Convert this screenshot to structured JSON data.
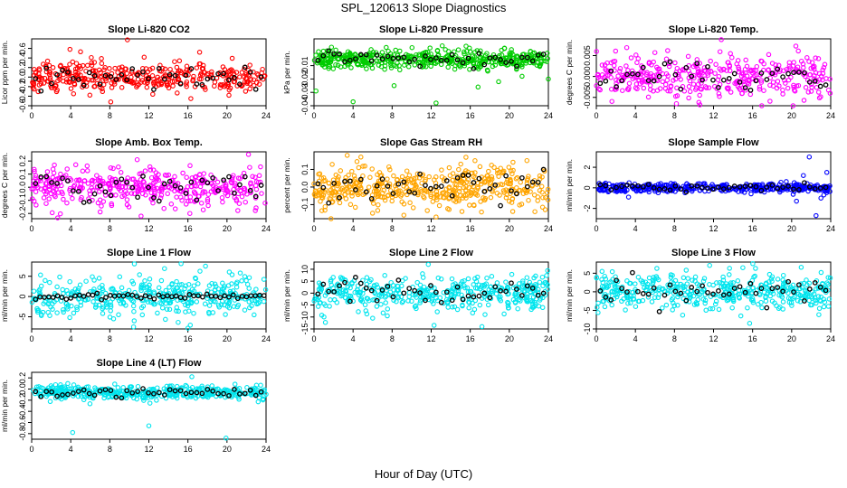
{
  "figure": {
    "title": "SPL_120613  Slope Diagnostics",
    "xlabel": "Hour of Day (UTC)"
  },
  "style": {
    "highlight_color": "#000000"
  },
  "chart_data": [
    {
      "type": "scatter",
      "title": "Slope Li-820 CO2",
      "ylabel": "Licor ppm per min.",
      "color": "#ff0000",
      "xlim": [
        0,
        24
      ],
      "ylim": [
        -0.6,
        0.8
      ],
      "xticks": [
        0,
        4,
        8,
        12,
        16,
        20,
        24
      ],
      "yticks": [
        -0.6,
        -0.4,
        -0.2,
        0.0,
        0.2,
        0.4,
        0.6
      ],
      "ytick_labels": [
        "-0.6",
        "-0.4",
        "-0.2",
        "0.0",
        "0.2",
        "0.4",
        "0.6"
      ],
      "center": 0.0,
      "spread": 0.16,
      "n": 380,
      "outliers": [
        [
          9.8,
          0.78
        ],
        [
          17.2,
          0.52
        ],
        [
          8.1,
          -0.52
        ],
        [
          16.3,
          -0.45
        ],
        [
          12.4,
          -0.36
        ]
      ]
    },
    {
      "type": "scatter",
      "title": "Slope Li-820 Pressure",
      "ylabel": "kPa per min.",
      "color": "#00cc00",
      "xlim": [
        0,
        24
      ],
      "ylim": [
        -0.04,
        0.01
      ],
      "xticks": [
        0,
        4,
        8,
        12,
        16,
        20,
        24
      ],
      "yticks": [
        -0.04,
        -0.03,
        -0.02,
        -0.01
      ],
      "ytick_labels": [
        "-0.04",
        "-0.03",
        "-0.02",
        "-0.01"
      ],
      "center": -0.005,
      "spread": 0.0035,
      "n": 460,
      "outliers": [
        [
          0.2,
          -0.029
        ],
        [
          4.0,
          -0.037
        ],
        [
          8.2,
          -0.025
        ],
        [
          12.5,
          -0.038
        ],
        [
          16.8,
          -0.026
        ],
        [
          18.9,
          -0.022
        ],
        [
          21.3,
          -0.018
        ],
        [
          24.0,
          -0.02
        ]
      ]
    },
    {
      "type": "scatter",
      "title": "Slope Li-820 Temp.",
      "ylabel": "degrees C per min.",
      "color": "#ff00ff",
      "xlim": [
        0,
        24
      ],
      "ylim": [
        -0.007,
        0.009
      ],
      "xticks": [
        0,
        4,
        8,
        12,
        16,
        20,
        24
      ],
      "yticks": [
        -0.005,
        0.0,
        0.005
      ],
      "ytick_labels": [
        "-0.005",
        "0.000",
        "0.005"
      ],
      "center": 0.0,
      "spread": 0.0024,
      "n": 380,
      "outliers": [
        [
          12.8,
          0.0088
        ],
        [
          8.2,
          -0.0065
        ],
        [
          10.5,
          -0.0062
        ],
        [
          7.3,
          0.0062
        ]
      ]
    },
    {
      "type": "scatter",
      "title": "Slope Amb. Box Temp.",
      "ylabel": "degrees C per min.",
      "color": "#ff00ff",
      "xlim": [
        0,
        24
      ],
      "ylim": [
        -0.24,
        0.27
      ],
      "xticks": [
        0,
        4,
        8,
        12,
        16,
        20,
        24
      ],
      "yticks": [
        -0.2,
        -0.1,
        0.0,
        0.1,
        0.2
      ],
      "ytick_labels": [
        "-0.2",
        "-0.1",
        "0.0",
        "0.1",
        "0.2"
      ],
      "center": 0.0,
      "spread": 0.075,
      "n": 400,
      "outliers": [
        [
          22.2,
          0.25
        ],
        [
          10.8,
          0.21
        ],
        [
          11.2,
          -0.22
        ],
        [
          16.2,
          -0.2
        ]
      ]
    },
    {
      "type": "scatter",
      "title": "Slope Gas Stream RH",
      "ylabel": "percent per min.",
      "color": "#ffa500",
      "xlim": [
        0,
        24
      ],
      "ylim": [
        -0.18,
        0.2
      ],
      "xticks": [
        0,
        4,
        8,
        12,
        16,
        20,
        24
      ],
      "yticks": [
        -0.1,
        0.0,
        0.1
      ],
      "ytick_labels": [
        "-0.1",
        "0.0",
        "0.1"
      ],
      "center": 0.0,
      "spread": 0.06,
      "n": 460,
      "outliers": [
        [
          3.4,
          0.18
        ],
        [
          4.8,
          0.17
        ],
        [
          12.5,
          -0.17
        ],
        [
          21.8,
          0.15
        ],
        [
          9.2,
          -0.16
        ]
      ]
    },
    {
      "type": "scatter",
      "title": "Slope Sample Flow",
      "ylabel": "ml/min per min.",
      "color": "#0000ff",
      "xlim": [
        0,
        24
      ],
      "ylim": [
        -3.0,
        3.5
      ],
      "xticks": [
        0,
        4,
        8,
        12,
        16,
        20,
        24
      ],
      "yticks": [
        -2,
        0,
        2
      ],
      "ytick_labels": [
        "-2",
        "0",
        "2"
      ],
      "center": 0.0,
      "spread": 0.22,
      "n": 380,
      "outliers": [
        [
          21.8,
          3.0
        ],
        [
          22.5,
          -2.7
        ],
        [
          23.6,
          1.5
        ],
        [
          21.2,
          1.2
        ],
        [
          20.5,
          -1.3
        ],
        [
          23.0,
          -1.0
        ],
        [
          3.3,
          -0.9
        ]
      ]
    },
    {
      "type": "scatter",
      "title": "Slope Line 1 Flow",
      "ylabel": "ml/min per min.",
      "color": "#00e5ee",
      "xlim": [
        0,
        24
      ],
      "ylim": [
        -8.0,
        8.5
      ],
      "xticks": [
        0,
        4,
        8,
        12,
        16,
        20,
        24
      ],
      "yticks": [
        -5,
        0,
        5
      ],
      "ytick_labels": [
        "-5",
        "0",
        "5"
      ],
      "center": 0.0,
      "spread": 2.5,
      "n": 380,
      "outliers": [
        [
          15.3,
          8.1
        ],
        [
          17.8,
          7.5
        ],
        [
          16.0,
          -7.8
        ],
        [
          10.5,
          -6.0
        ]
      ]
    },
    {
      "type": "scatter",
      "title": "Slope Line 2 Flow",
      "ylabel": "ml/min per min.",
      "color": "#00e5ee",
      "xlim": [
        0,
        24
      ],
      "ylim": [
        -15,
        13
      ],
      "xticks": [
        0,
        4,
        8,
        12,
        16,
        20,
        24
      ],
      "yticks": [
        -15,
        -10,
        -5,
        0,
        5,
        10
      ],
      "ytick_labels": [
        "-15",
        "-10",
        "-5",
        "0",
        "5",
        "10"
      ],
      "center": 0.0,
      "spread": 3.6,
      "n": 420,
      "outliers": [
        [
          11.7,
          12.0
        ],
        [
          17.2,
          -14.0
        ],
        [
          12.3,
          -13.5
        ],
        [
          6.0,
          -10.5
        ]
      ]
    },
    {
      "type": "scatter",
      "title": "Slope Line 3 Flow",
      "ylabel": "ml/min per min.",
      "color": "#00e5ee",
      "xlim": [
        0,
        24
      ],
      "ylim": [
        -10,
        8
      ],
      "xticks": [
        0,
        4,
        8,
        12,
        16,
        20,
        24
      ],
      "yticks": [
        -10,
        -5,
        0,
        5
      ],
      "ytick_labels": [
        "-10",
        "-5",
        "0",
        "5"
      ],
      "center": 0.0,
      "spread": 2.3,
      "n": 420,
      "outliers": [
        [
          11.6,
          7.1
        ],
        [
          16.3,
          6.3
        ],
        [
          15.7,
          -8.5
        ],
        [
          14.8,
          -6.5
        ],
        [
          9.2,
          5.8
        ]
      ]
    },
    {
      "type": "scatter",
      "title": "Slope Line 4 (LT) Flow",
      "ylabel": "ml/min per min.",
      "color": "#00e5ee",
      "xlim": [
        0,
        24
      ],
      "ylim": [
        -0.9,
        0.3
      ],
      "xticks": [
        0,
        4,
        8,
        12,
        16,
        20,
        24
      ],
      "yticks": [
        -0.8,
        -0.6,
        -0.4,
        -0.2,
        0.0,
        0.2
      ],
      "ytick_labels": [
        "-0.8",
        "-0.6",
        "-0.4",
        "-0.2",
        "0.0",
        "0.2"
      ],
      "center": -0.06,
      "spread": 0.06,
      "n": 420,
      "outliers": [
        [
          4.2,
          -0.78
        ],
        [
          12.0,
          -0.66
        ],
        [
          19.9,
          -0.88
        ],
        [
          16.4,
          0.22
        ]
      ]
    }
  ]
}
